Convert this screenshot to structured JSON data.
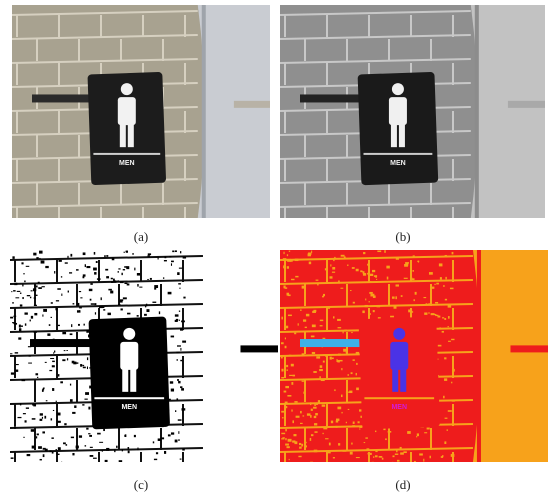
{
  "panels": [
    {
      "caption": "(a)",
      "sign_text": "MEN"
    },
    {
      "caption": "(b)",
      "sign_text": "MEN"
    },
    {
      "caption": "(c)",
      "sign_text": "MEN"
    },
    {
      "caption": "(d)",
      "sign_text": "MEN"
    }
  ]
}
